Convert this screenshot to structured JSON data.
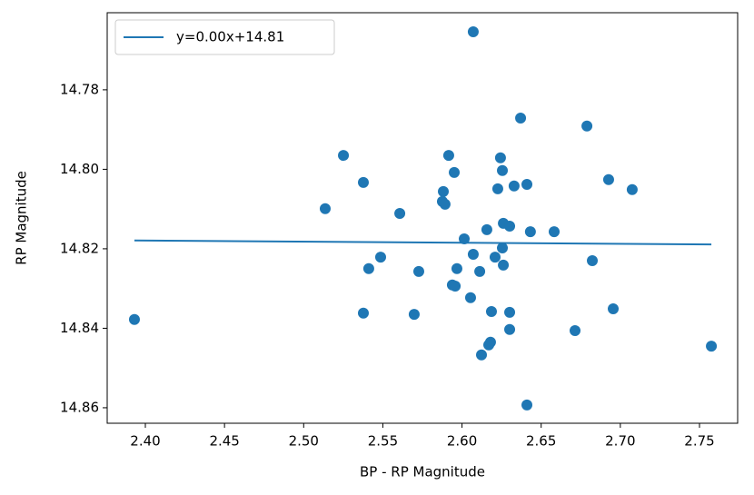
{
  "chart_data": {
    "type": "scatter",
    "x_label": "BP - RP Magnitude",
    "y_label": "RP Magnitude",
    "xlim": [
      2.3759,
      2.7741
    ],
    "ylim": [
      14.8639,
      14.7606
    ],
    "xticks": [
      {
        "value": 2.4,
        "label": "2.40"
      },
      2.45,
      {
        "value": 2.5,
        "label": "2.50"
      },
      2.55,
      {
        "value": 2.6,
        "label": "2.60"
      },
      2.65,
      {
        "value": 2.7,
        "label": "2.70"
      },
      2.75
    ],
    "yticks": [
      14.78,
      {
        "value": 14.8,
        "label": "14.80"
      },
      14.82,
      14.84,
      14.86
    ],
    "legend": "upper left",
    "points": {
      "color": "#1f77b4",
      "x": [
        2.3931,
        2.6071,
        2.637,
        2.6789,
        2.5251,
        2.5916,
        2.6243,
        2.5951,
        2.6255,
        2.6926,
        2.5377,
        2.641,
        2.6329,
        2.6226,
        2.7075,
        2.5882,
        2.5876,
        2.5893,
        2.5136,
        2.5607,
        2.6261,
        2.6301,
        2.6157,
        2.6432,
        2.6582,
        2.6014,
        2.6255,
        2.6071,
        2.6209,
        2.5486,
        2.6823,
        2.6261,
        2.5411,
        2.5968,
        2.5727,
        2.6112,
        2.5939,
        2.5957,
        2.6054,
        2.5377,
        2.5698,
        2.6186,
        2.6301,
        2.6955,
        2.6301,
        2.6714,
        2.618,
        2.6169,
        2.7575,
        2.6123,
        2.641
      ],
      "values": [
        14.8378,
        14.7654,
        14.7871,
        14.7891,
        14.7965,
        14.7965,
        14.7971,
        14.8008,
        14.8003,
        14.8026,
        14.8033,
        14.8038,
        14.8042,
        14.8049,
        14.8051,
        14.8056,
        14.8081,
        14.8088,
        14.8099,
        14.8111,
        14.8136,
        14.8143,
        14.8152,
        14.8157,
        14.8157,
        14.8175,
        14.8198,
        14.8214,
        14.8221,
        14.8221,
        14.823,
        14.8241,
        14.825,
        14.825,
        14.8257,
        14.8257,
        14.8291,
        14.8294,
        14.8323,
        14.8362,
        14.8365,
        14.8358,
        14.836,
        14.8351,
        14.8403,
        14.8406,
        14.8435,
        14.8442,
        14.8445,
        14.8467,
        14.8593
      ]
    },
    "series": [
      {
        "name": "y=0.00x+14.81",
        "color": "#1f77b4",
        "x": [
          2.3931,
          2.7575
        ],
        "values": [
          14.8179,
          14.8189
        ]
      }
    ]
  }
}
